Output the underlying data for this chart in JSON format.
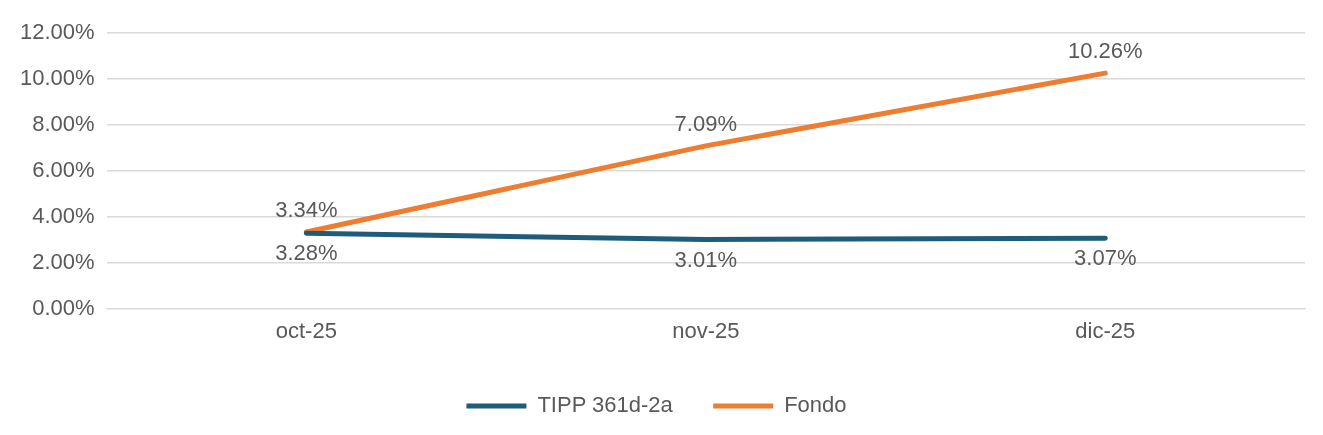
{
  "chart_data": {
    "type": "line",
    "categories": [
      "oct-25",
      "nov-25",
      "dic-25"
    ],
    "series": [
      {
        "name": "TIPP 361d-2a",
        "color": "#1f5b7a",
        "values": [
          3.28,
          3.01,
          3.07
        ],
        "value_labels": [
          "3.28%",
          "3.01%",
          "3.07%"
        ]
      },
      {
        "name": "Fondo",
        "color": "#ed7d31",
        "values": [
          3.34,
          7.09,
          10.26
        ],
        "value_labels": [
          "3.34%",
          "7.09%",
          "10.26%"
        ]
      }
    ],
    "ylim": [
      0,
      12
    ],
    "yticks": [
      {
        "value": 0,
        "label": "0.00%"
      },
      {
        "value": 2,
        "label": "2.00%"
      },
      {
        "value": 4,
        "label": "4.00%"
      },
      {
        "value": 6,
        "label": "6.00%"
      },
      {
        "value": 8,
        "label": "8.00%"
      },
      {
        "value": 10,
        "label": "10.00%"
      },
      {
        "value": 12,
        "label": "12.00%"
      }
    ],
    "grid": "y",
    "legend": "bottom",
    "marker": "none",
    "line_style": "solid"
  }
}
